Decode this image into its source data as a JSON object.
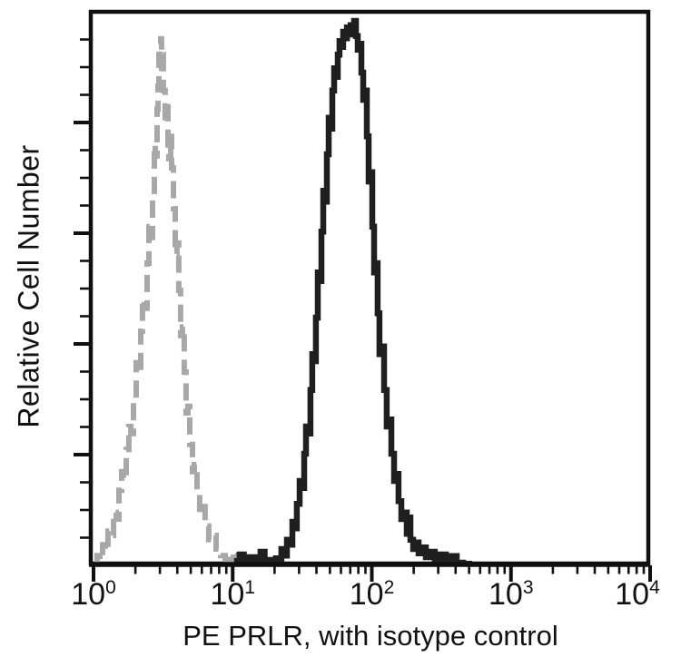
{
  "figure": {
    "background": "#ffffff",
    "frame_color": "#101010",
    "text_color": "#111111"
  },
  "chart_data": {
    "type": "line",
    "subtype": "flow-cytometry-histogram-overlay",
    "title": "",
    "xlabel": "PE PRLR, with isotype control",
    "ylabel": "Relative Cell Number",
    "x_scale": "log10",
    "x_range_exponents": [
      0,
      4
    ],
    "x_tick_exponents": [
      "0",
      "1",
      "2",
      "3",
      "4"
    ],
    "x_tick_base": "10",
    "x_tick_label_dx": [
      0,
      0,
      0,
      0,
      -14
    ],
    "x_minor_ticks_per_decade": [
      2,
      3,
      4,
      5,
      6,
      7,
      8,
      9
    ],
    "y_axis": {
      "numeric_labels_shown": false,
      "major_tick_percent_step": 20,
      "minor_tick_percent_step": 5,
      "ylim_percent": [
        0,
        100
      ]
    },
    "grid": "off",
    "legend": "none",
    "series": [
      {
        "name": "isotype control",
        "line_style": "dashed",
        "color": "#a8a8a8",
        "peak_x_value": 3.0,
        "peak_height_percent": 96.7,
        "points_logx_ypct": [
          [
            0.007,
            0.3
          ],
          [
            0.026,
            1.8
          ],
          [
            0.046,
            1.0
          ],
          [
            0.065,
            3.8
          ],
          [
            0.085,
            2.7
          ],
          [
            0.104,
            6.3
          ],
          [
            0.124,
            5.5
          ],
          [
            0.144,
            9.7
          ],
          [
            0.163,
            8.5
          ],
          [
            0.183,
            13.8
          ],
          [
            0.202,
            17.2
          ],
          [
            0.215,
            15.8
          ],
          [
            0.235,
            21.3
          ],
          [
            0.254,
            25.5
          ],
          [
            0.268,
            24.2
          ],
          [
            0.287,
            30.5
          ],
          [
            0.307,
            37.2
          ],
          [
            0.32,
            35.5
          ],
          [
            0.339,
            43.0
          ],
          [
            0.352,
            48.8
          ],
          [
            0.365,
            47.2
          ],
          [
            0.385,
            55.5
          ],
          [
            0.398,
            62.2
          ],
          [
            0.411,
            60.2
          ],
          [
            0.424,
            68.0
          ],
          [
            0.437,
            77.2
          ],
          [
            0.444,
            75.2
          ],
          [
            0.457,
            83.8
          ],
          [
            0.463,
            88.0
          ],
          [
            0.47,
            93.8
          ],
          [
            0.476,
            95.8
          ],
          [
            0.483,
            96.7
          ],
          [
            0.489,
            91.3
          ],
          [
            0.496,
            93.8
          ],
          [
            0.502,
            87.2
          ],
          [
            0.515,
            82.2
          ],
          [
            0.522,
            84.2
          ],
          [
            0.535,
            77.2
          ],
          [
            0.541,
            74.7
          ],
          [
            0.554,
            78.8
          ],
          [
            0.561,
            73.0
          ],
          [
            0.574,
            65.5
          ],
          [
            0.587,
            57.2
          ],
          [
            0.6,
            59.2
          ],
          [
            0.613,
            50.5
          ],
          [
            0.626,
            42.2
          ],
          [
            0.639,
            43.8
          ],
          [
            0.652,
            35.5
          ],
          [
            0.665,
            28.0
          ],
          [
            0.678,
            29.2
          ],
          [
            0.692,
            22.2
          ],
          [
            0.711,
            17.2
          ],
          [
            0.724,
            18.5
          ],
          [
            0.744,
            13.0
          ],
          [
            0.763,
            9.7
          ],
          [
            0.783,
            10.8
          ],
          [
            0.802,
            7.2
          ],
          [
            0.828,
            4.7
          ],
          [
            0.854,
            5.5
          ],
          [
            0.881,
            3.0
          ],
          [
            0.913,
            1.8
          ],
          [
            0.946,
            1.0
          ],
          [
            0.978,
            2.2
          ],
          [
            1.005,
            0.8
          ],
          [
            1.037,
            1.8
          ],
          [
            1.063,
            0.5
          ],
          [
            1.089,
            0.3
          ]
        ]
      },
      {
        "name": "PE PRLR",
        "line_style": "solid",
        "color": "#1f1f1f",
        "peak_x_value": 74.6,
        "peak_height_percent": 100.0,
        "points_logx_ypct": [
          [
            1.01,
            0.8
          ],
          [
            1.05,
            2.0
          ],
          [
            1.08,
            0.7
          ],
          [
            1.12,
            1.5
          ],
          [
            1.16,
            0.5
          ],
          [
            1.2,
            2.5
          ],
          [
            1.23,
            1.0
          ],
          [
            1.27,
            0.5
          ],
          [
            1.285,
            0.3
          ],
          [
            1.311,
            1.3
          ],
          [
            1.331,
            0.7
          ],
          [
            1.35,
            3.0
          ],
          [
            1.37,
            1.8
          ],
          [
            1.39,
            4.7
          ],
          [
            1.409,
            3.8
          ],
          [
            1.429,
            8.0
          ],
          [
            1.448,
            6.8
          ],
          [
            1.461,
            11.3
          ],
          [
            1.481,
            15.5
          ],
          [
            1.494,
            14.2
          ],
          [
            1.514,
            20.5
          ],
          [
            1.527,
            25.5
          ],
          [
            1.54,
            24.2
          ],
          [
            1.559,
            32.2
          ],
          [
            1.572,
            38.8
          ],
          [
            1.585,
            37.5
          ],
          [
            1.598,
            45.5
          ],
          [
            1.612,
            53.8
          ],
          [
            1.625,
            52.2
          ],
          [
            1.638,
            61.3
          ],
          [
            1.651,
            68.8
          ],
          [
            1.664,
            66.8
          ],
          [
            1.677,
            75.5
          ],
          [
            1.69,
            82.2
          ],
          [
            1.703,
            80.2
          ],
          [
            1.716,
            87.2
          ],
          [
            1.729,
            91.3
          ],
          [
            1.742,
            89.7
          ],
          [
            1.755,
            93.8
          ],
          [
            1.768,
            96.3
          ],
          [
            1.781,
            95.2
          ],
          [
            1.794,
            98.0
          ],
          [
            1.808,
            96.8
          ],
          [
            1.821,
            98.8
          ],
          [
            1.834,
            97.5
          ],
          [
            1.847,
            99.2
          ],
          [
            1.86,
            98.2
          ],
          [
            1.873,
            100.0
          ],
          [
            1.886,
            97.2
          ],
          [
            1.899,
            94.7
          ],
          [
            1.912,
            95.8
          ],
          [
            1.925,
            90.5
          ],
          [
            1.938,
            85.5
          ],
          [
            1.951,
            87.2
          ],
          [
            1.964,
            78.8
          ],
          [
            1.977,
            70.5
          ],
          [
            1.99,
            72.2
          ],
          [
            2.003,
            62.2
          ],
          [
            2.016,
            53.8
          ],
          [
            2.029,
            55.5
          ],
          [
            2.042,
            46.3
          ],
          [
            2.055,
            38.8
          ],
          [
            2.068,
            40.2
          ],
          [
            2.088,
            32.2
          ],
          [
            2.107,
            25.5
          ],
          [
            2.12,
            26.8
          ],
          [
            2.14,
            20.5
          ],
          [
            2.16,
            15.5
          ],
          [
            2.173,
            16.8
          ],
          [
            2.192,
            11.8
          ],
          [
            2.212,
            8.5
          ],
          [
            2.231,
            9.7
          ],
          [
            2.251,
            5.8
          ],
          [
            2.264,
            8.8
          ],
          [
            2.277,
            4.7
          ],
          [
            2.297,
            3.0
          ],
          [
            2.316,
            4.2
          ],
          [
            2.336,
            2.2
          ],
          [
            2.362,
            3.3
          ],
          [
            2.388,
            1.5
          ],
          [
            2.421,
            2.5
          ],
          [
            2.453,
            1.0
          ],
          [
            2.492,
            2.0
          ],
          [
            2.532,
            0.8
          ],
          [
            2.571,
            1.7
          ],
          [
            2.61,
            0.5
          ],
          [
            2.656,
            0.3
          ],
          [
            2.7,
            0.2
          ]
        ]
      }
    ]
  }
}
